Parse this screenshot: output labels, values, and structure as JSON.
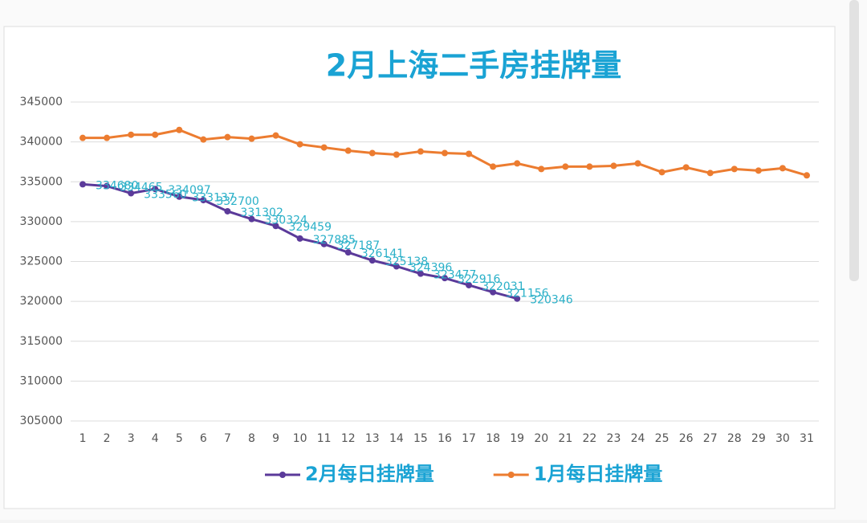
{
  "chart_data": {
    "type": "line",
    "title": "2月上海二手房挂牌量",
    "categories": [
      1,
      2,
      3,
      4,
      5,
      6,
      7,
      8,
      9,
      10,
      11,
      12,
      13,
      14,
      15,
      16,
      17,
      18,
      19,
      20,
      21,
      22,
      23,
      24,
      25,
      26,
      27,
      28,
      29,
      30,
      31
    ],
    "series": [
      {
        "name": "2月每日挂牌量",
        "color": "#5b3a9a",
        "data_labels": true,
        "values": [
          334680,
          334465,
          333560,
          334097,
          333137,
          332700,
          331302,
          330324,
          329459,
          327885,
          327187,
          326141,
          325138,
          324396,
          323477,
          322916,
          322031,
          321156,
          320346,
          null,
          null,
          null,
          null,
          null,
          null,
          null,
          null,
          null,
          null,
          null,
          null
        ]
      },
      {
        "name": "1月每日挂牌量",
        "color": "#ec7c30",
        "data_labels": false,
        "values": [
          340500,
          340500,
          340900,
          340900,
          341500,
          340300,
          340600,
          340400,
          340800,
          339700,
          339300,
          338900,
          338600,
          338400,
          338800,
          338600,
          338500,
          336900,
          337300,
          336600,
          336900,
          336900,
          337000,
          337300,
          336200,
          336800,
          336100,
          336600,
          336400,
          336700,
          335800
        ]
      }
    ],
    "ylim": [
      305000,
      345000
    ],
    "yticks": [
      305000,
      310000,
      315000,
      320000,
      325000,
      330000,
      335000,
      340000,
      345000
    ],
    "grid": true,
    "legend": "bottom"
  }
}
